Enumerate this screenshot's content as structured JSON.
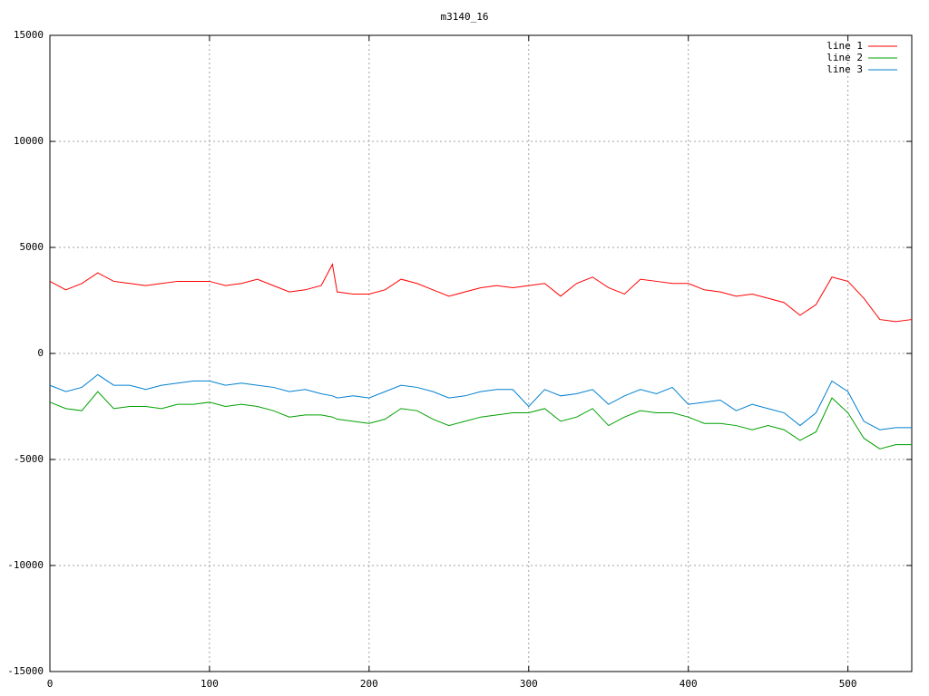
{
  "chart_data": {
    "type": "line",
    "title": "m3140_16",
    "x": [
      0,
      10,
      20,
      30,
      40,
      50,
      60,
      70,
      80,
      90,
      100,
      110,
      120,
      130,
      140,
      150,
      160,
      170,
      177,
      180,
      190,
      200,
      210,
      220,
      230,
      240,
      250,
      260,
      270,
      280,
      290,
      300,
      310,
      320,
      330,
      340,
      350,
      360,
      370,
      380,
      390,
      400,
      410,
      420,
      430,
      440,
      450,
      460,
      470,
      480,
      490,
      500,
      510,
      520,
      530,
      540
    ],
    "series": [
      {
        "name": "line 1",
        "color": "#ff0000",
        "values": [
          3400,
          3000,
          3300,
          3800,
          3400,
          3300,
          3200,
          3300,
          3400,
          3400,
          3400,
          3200,
          3300,
          3500,
          3200,
          2900,
          3000,
          3200,
          4200,
          2900,
          2800,
          2800,
          3000,
          3500,
          3300,
          3000,
          2700,
          2900,
          3100,
          3200,
          3100,
          3200,
          3300,
          2700,
          3300,
          3600,
          3100,
          2800,
          3500,
          3400,
          3300,
          3300,
          3000,
          2900,
          2700,
          2800,
          2600,
          2400,
          1800,
          2300,
          3600,
          3400,
          2600,
          1600,
          1500,
          1600
        ]
      },
      {
        "name": "line 2",
        "color": "#00a000",
        "values": [
          -2300,
          -2600,
          -2700,
          -1800,
          -2600,
          -2500,
          -2500,
          -2600,
          -2400,
          -2400,
          -2300,
          -2500,
          -2400,
          -2500,
          -2700,
          -3000,
          -2900,
          -2900,
          -3000,
          -3100,
          -3200,
          -3300,
          -3100,
          -2600,
          -2700,
          -3100,
          -3400,
          -3200,
          -3000,
          -2900,
          -2800,
          -2800,
          -2600,
          -3200,
          -3000,
          -2600,
          -3400,
          -3000,
          -2700,
          -2800,
          -2800,
          -3000,
          -3300,
          -3300,
          -3400,
          -3600,
          -3400,
          -3600,
          -4100,
          -3700,
          -2100,
          -2800,
          -4000,
          -4500,
          -4300,
          -4300
        ]
      },
      {
        "name": "line 3",
        "color": "#0080d0",
        "values": [
          -1500,
          -1800,
          -1600,
          -1000,
          -1500,
          -1500,
          -1700,
          -1500,
          -1400,
          -1300,
          -1300,
          -1500,
          -1400,
          -1500,
          -1600,
          -1800,
          -1700,
          -1900,
          -2000,
          -2100,
          -2000,
          -2100,
          -1800,
          -1500,
          -1600,
          -1800,
          -2100,
          -2000,
          -1800,
          -1700,
          -1700,
          -2500,
          -1700,
          -2000,
          -1900,
          -1700,
          -2400,
          -2000,
          -1700,
          -1900,
          -1600,
          -2400,
          -2300,
          -2200,
          -2700,
          -2400,
          -2600,
          -2800,
          -3400,
          -2800,
          -1300,
          -1800,
          -3200,
          -3600,
          -3500,
          -3500
        ]
      }
    ],
    "xlim": [
      0,
      540
    ],
    "xticks": [
      0,
      100,
      200,
      300,
      400,
      500
    ],
    "ylim": [
      -15000,
      15000
    ],
    "yticks": [
      -15000,
      -10000,
      -5000,
      0,
      5000,
      10000,
      15000
    ],
    "grid": true,
    "legend": "top right"
  }
}
